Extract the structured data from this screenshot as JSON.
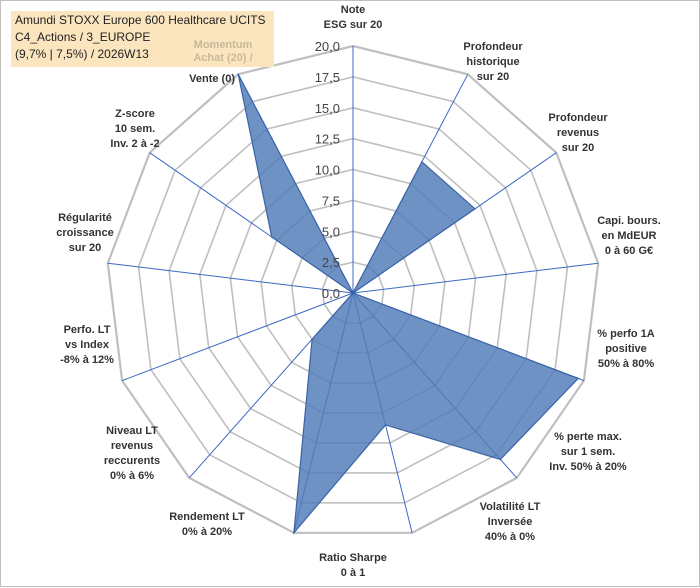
{
  "header": {
    "line1": "Amundi STOXX Europe 600 Healthcare UCITS",
    "line2": "C4_Actions / 3_EUROPE",
    "line3": "(9,7% | 7,5%) / 2026W13"
  },
  "legend": {
    "line1": "Momentum",
    "line2": "Achat (20) /",
    "line3": "Vente (0)"
  },
  "colors": {
    "fill": "#4f7ab8",
    "grid": "#bfbfbf",
    "spoke": "#3c68c4"
  },
  "chart_data": {
    "type": "radar",
    "title": "Amundi STOXX Europe 600 Healthcare UCITS",
    "rmin": 0,
    "rmax": 20,
    "ticks": [
      "0,0",
      "2,5",
      "5,0",
      "7,5",
      "10,0",
      "12,5",
      "15,0",
      "17,5",
      "20,0"
    ],
    "tick_values": [
      0,
      2.5,
      5,
      7.5,
      10,
      12.5,
      15,
      17.5,
      20
    ],
    "axes": [
      {
        "lines": [
          "Note",
          "ESG sur 20"
        ],
        "value": 0
      },
      {
        "lines": [
          "Profondeur",
          "historique",
          "sur 20"
        ],
        "value": 12
      },
      {
        "lines": [
          "Profondeur",
          "revenus",
          "sur 20"
        ],
        "value": 12
      },
      {
        "lines": [
          "Capi. bours.",
          "en MdEUR",
          "0 à 60 G€"
        ],
        "value": 0
      },
      {
        "lines": [
          "% perfo 1A",
          "positive",
          "50% à 80%"
        ],
        "value": 19.5
      },
      {
        "lines": [
          "% perte max.",
          "sur 1 sem.",
          "Inv. 50% à 20%"
        ],
        "value": 18
      },
      {
        "lines": [
          "Volatilité LT",
          "Inversée",
          "40% à 0%"
        ],
        "value": 11
      },
      {
        "lines": [
          "Ratio Sharpe",
          "0 à 1"
        ],
        "value": 20
      },
      {
        "lines": [
          "Rendement LT",
          "0% à 20%"
        ],
        "value": 5
      },
      {
        "lines": [
          "Niveau LT",
          "revenus",
          "reccurents",
          "0% à 6%"
        ],
        "value": 0
      },
      {
        "lines": [
          "Perfo. LT",
          "vs Index",
          "-8% à 12%"
        ],
        "value": 0
      },
      {
        "lines": [
          "Régularité",
          "croissance",
          "sur 20"
        ],
        "value": 8
      },
      {
        "lines": [
          "Z-score",
          "10 sem.",
          "Inv. 2 à -2"
        ],
        "value": 20
      }
    ]
  }
}
